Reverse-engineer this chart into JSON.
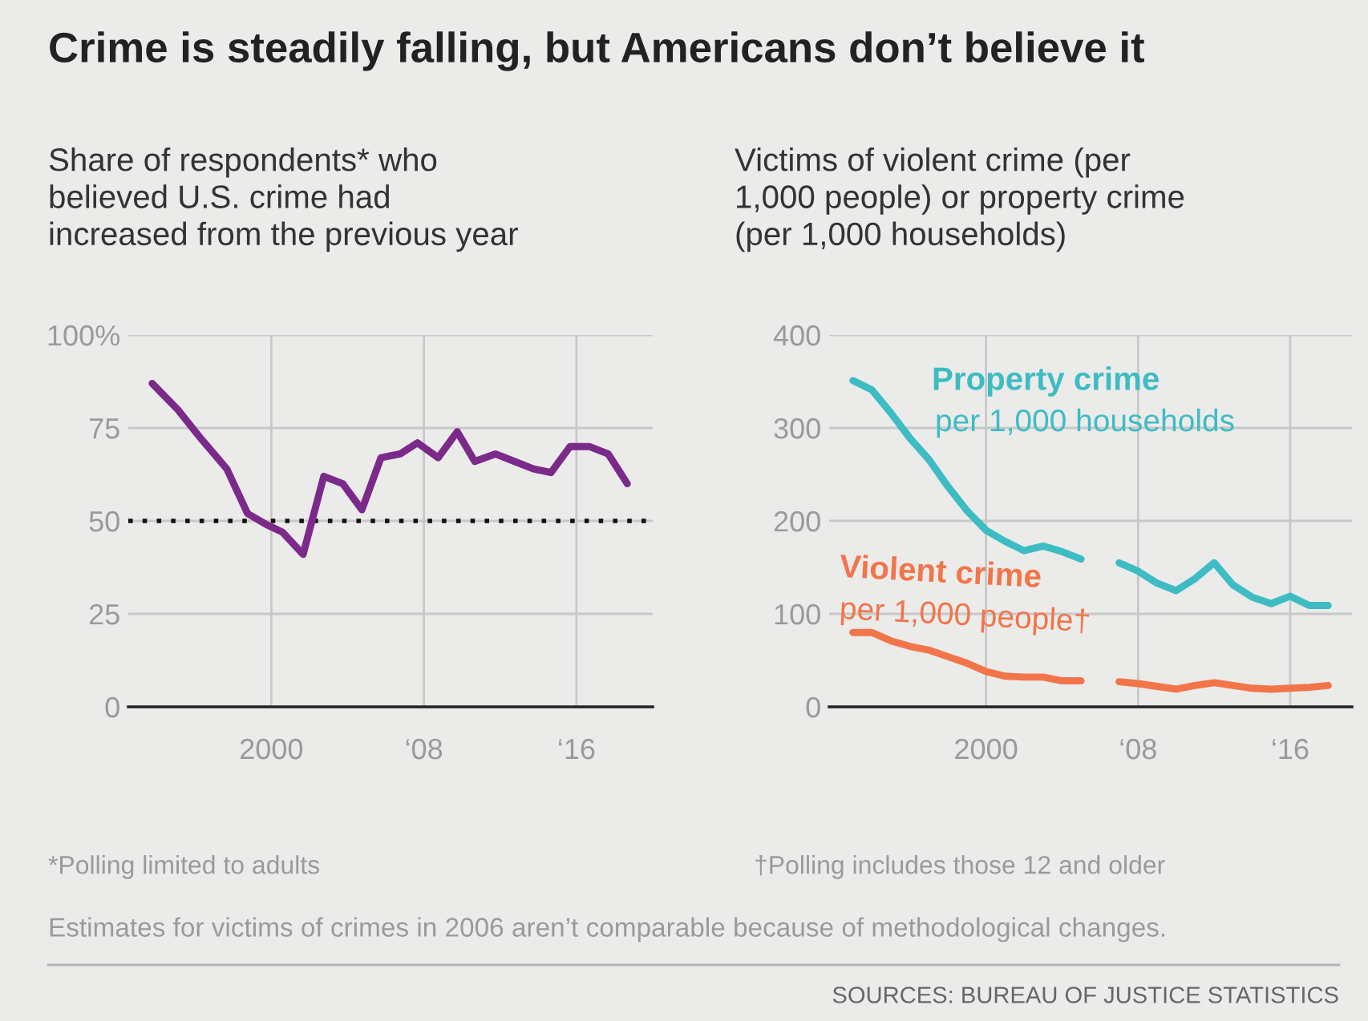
{
  "chart_data": [
    {
      "type": "line",
      "title": "Crime is steadily falling, but Americans don’t believe it",
      "subtitle": "Share of respondents* who\nbelieved U.S. crime had\nincreased from the previous year",
      "series": [
        {
          "color": "#7b2a8a",
          "x": [
            "1993-10",
            "1995-02",
            "1996-05",
            "1997-09",
            "1998-10",
            "1999-10",
            "2000-08",
            "2001-09",
            "2002-10",
            "2003-10",
            "2004-10",
            "2005-10",
            "2006-10",
            "2007-09",
            "2008-10",
            "2009-10",
            "2010-09",
            "2011-10",
            "2012-10",
            "2013-10",
            "2014-09",
            "2015-09",
            "2016-09",
            "2017-09",
            "2018-09"
          ],
          "values": [
            87,
            80,
            72,
            64,
            52,
            49,
            47,
            41,
            62,
            60,
            53,
            67,
            68,
            71,
            67,
            74,
            66,
            68,
            66,
            64,
            63,
            70,
            70,
            68,
            60
          ]
        }
      ],
      "xlim": [
        "1992-07",
        "2020-01"
      ],
      "xticks": [
        {
          "value": "2000",
          "label": "2000"
        },
        {
          "value": "2008",
          "label": "‘08"
        },
        {
          "value": "2016",
          "label": "‘16"
        }
      ],
      "ylim": [
        0,
        100
      ],
      "yticks": [
        0,
        25,
        50,
        75,
        {
          "value": 100,
          "label": "100%"
        }
      ],
      "ref_lines": [
        {
          "axis": "y",
          "value": 50,
          "color": "#111111",
          "line_style": "dotted"
        }
      ],
      "grid": true,
      "legend": false,
      "annotations": [
        "*Polling limited to adults"
      ]
    },
    {
      "type": "line",
      "subtitle": "Victims of violent crime (per\n1,000 people) or property crime\n(per 1,000 households)",
      "x": [
        "1993",
        "1994",
        "1995",
        "1996",
        "1997",
        "1998",
        "1999",
        "2000",
        "2001",
        "2002",
        "2003",
        "2004",
        "2005",
        "2006",
        "2007",
        "2008",
        "2009",
        "2010",
        "2011",
        "2012",
        "2013",
        "2014",
        "2015",
        "2016",
        "2017",
        "2018"
      ],
      "series": [
        {
          "name": "Property crime",
          "color": "#3dbcc4",
          "values": [
            351,
            341,
            316,
            289,
            266,
            237,
            211,
            190,
            178,
            168,
            173,
            167,
            159,
            null,
            155,
            146,
            133,
            125,
            138,
            155,
            131,
            118,
            111,
            119,
            109,
            109
          ]
        },
        {
          "name": "Violent crime",
          "color": "#f2754a",
          "values": [
            80,
            80,
            71,
            65,
            61,
            54,
            47,
            38,
            33,
            32,
            32,
            28,
            28,
            null,
            27,
            25,
            22,
            19,
            23,
            26,
            23,
            20,
            19,
            20,
            21,
            23
          ]
        }
      ],
      "xlim": [
        "1991-10",
        "2019-04"
      ],
      "xticks": [
        {
          "value": "2000",
          "label": "2000"
        },
        {
          "value": "2008",
          "label": "‘08"
        },
        {
          "value": "2016",
          "label": "‘16"
        }
      ],
      "ylim": [
        0,
        400
      ],
      "yticks": [
        0,
        100,
        200,
        300,
        400
      ],
      "grid": true,
      "legend": false,
      "annotations": [
        "per 1,000 households",
        "per 1,000 people†",
        "†Polling includes those 12 and older",
        "Estimates for victims of crimes in 2006 aren’t comparable because of methodological changes.",
        "SOURCES: BUREAU OF JUSTICE STATISTICS"
      ]
    }
  ]
}
